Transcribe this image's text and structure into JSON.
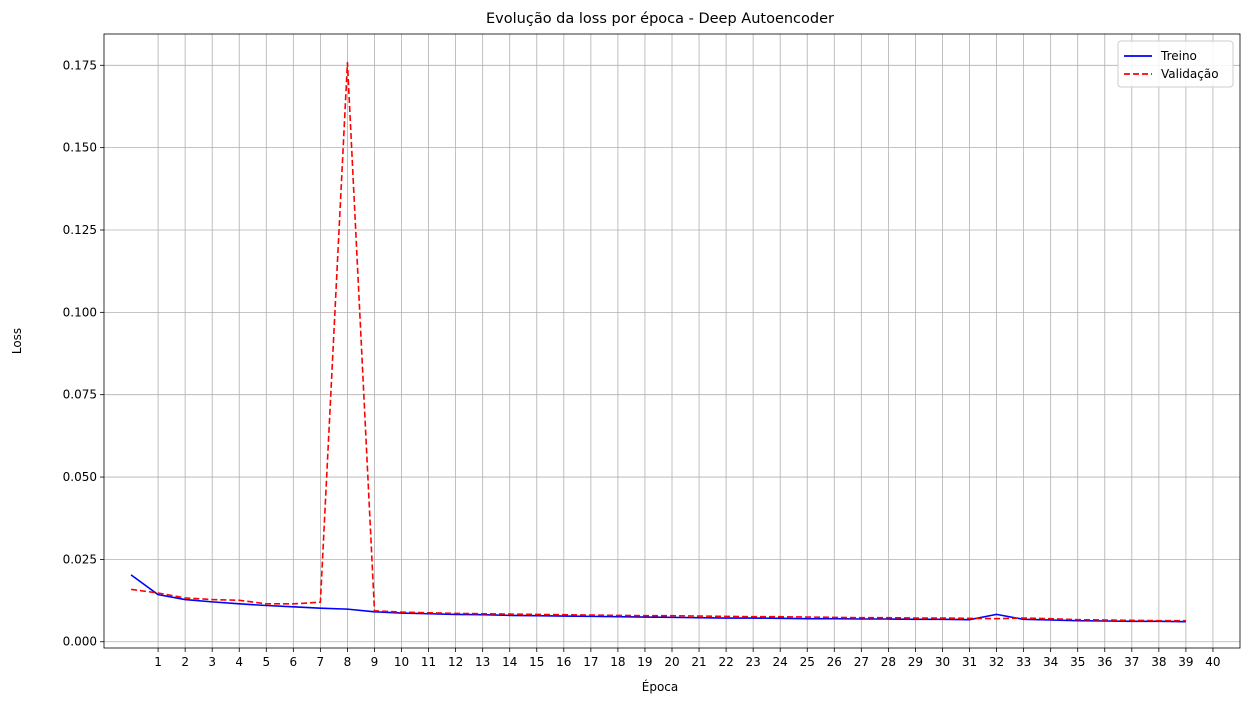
{
  "chart_data": {
    "type": "line",
    "title": "Evolução da loss por época - Deep Autoencoder",
    "xlabel": "Época",
    "ylabel": "Loss",
    "xlim": [
      -1,
      41
    ],
    "ylim": [
      -0.0019,
      0.1845
    ],
    "xticks": [
      1,
      2,
      3,
      4,
      5,
      6,
      7,
      8,
      9,
      10,
      11,
      12,
      13,
      14,
      15,
      16,
      17,
      18,
      19,
      20,
      21,
      22,
      23,
      24,
      25,
      26,
      27,
      28,
      29,
      30,
      31,
      32,
      33,
      34,
      35,
      36,
      37,
      38,
      39,
      40
    ],
    "yticks": [
      0.0,
      0.025,
      0.05,
      0.075,
      0.1,
      0.125,
      0.15,
      0.175
    ],
    "ytick_labels": [
      "0.000",
      "0.025",
      "0.050",
      "0.075",
      "0.100",
      "0.125",
      "0.150",
      "0.175"
    ],
    "grid": true,
    "legend": "top-right",
    "x": [
      0,
      1,
      2,
      3,
      4,
      5,
      6,
      7,
      8,
      9,
      10,
      11,
      12,
      13,
      14,
      15,
      16,
      17,
      18,
      19,
      20,
      21,
      22,
      23,
      24,
      25,
      26,
      27,
      28,
      29,
      30,
      31,
      32,
      33,
      34,
      35,
      36,
      37,
      38,
      39
    ],
    "series": [
      {
        "name": "Treino",
        "color": "#0000ff",
        "style": "solid",
        "values": [
          0.0203,
          0.0143,
          0.0128,
          0.0121,
          0.0115,
          0.011,
          0.0106,
          0.0102,
          0.0099,
          0.0091,
          0.0087,
          0.0085,
          0.0083,
          0.0082,
          0.008,
          0.0079,
          0.0078,
          0.0077,
          0.0076,
          0.0075,
          0.0074,
          0.0073,
          0.0072,
          0.0072,
          0.0071,
          0.007,
          0.007,
          0.0069,
          0.0069,
          0.0068,
          0.0068,
          0.0067,
          0.0083,
          0.0068,
          0.0066,
          0.0064,
          0.0063,
          0.0062,
          0.0062,
          0.0061
        ]
      },
      {
        "name": "Validação",
        "color": "#ff0000",
        "style": "dashed",
        "values": [
          0.0159,
          0.0148,
          0.0133,
          0.0128,
          0.0126,
          0.0115,
          0.0115,
          0.012,
          0.1758,
          0.0094,
          0.009,
          0.0088,
          0.0086,
          0.0085,
          0.0084,
          0.0083,
          0.0082,
          0.0081,
          0.008,
          0.0079,
          0.0079,
          0.0078,
          0.0077,
          0.0076,
          0.0076,
          0.0075,
          0.0074,
          0.0073,
          0.0073,
          0.0072,
          0.0072,
          0.0071,
          0.007,
          0.0072,
          0.007,
          0.0067,
          0.0066,
          0.0065,
          0.0064,
          0.0064
        ]
      }
    ]
  }
}
